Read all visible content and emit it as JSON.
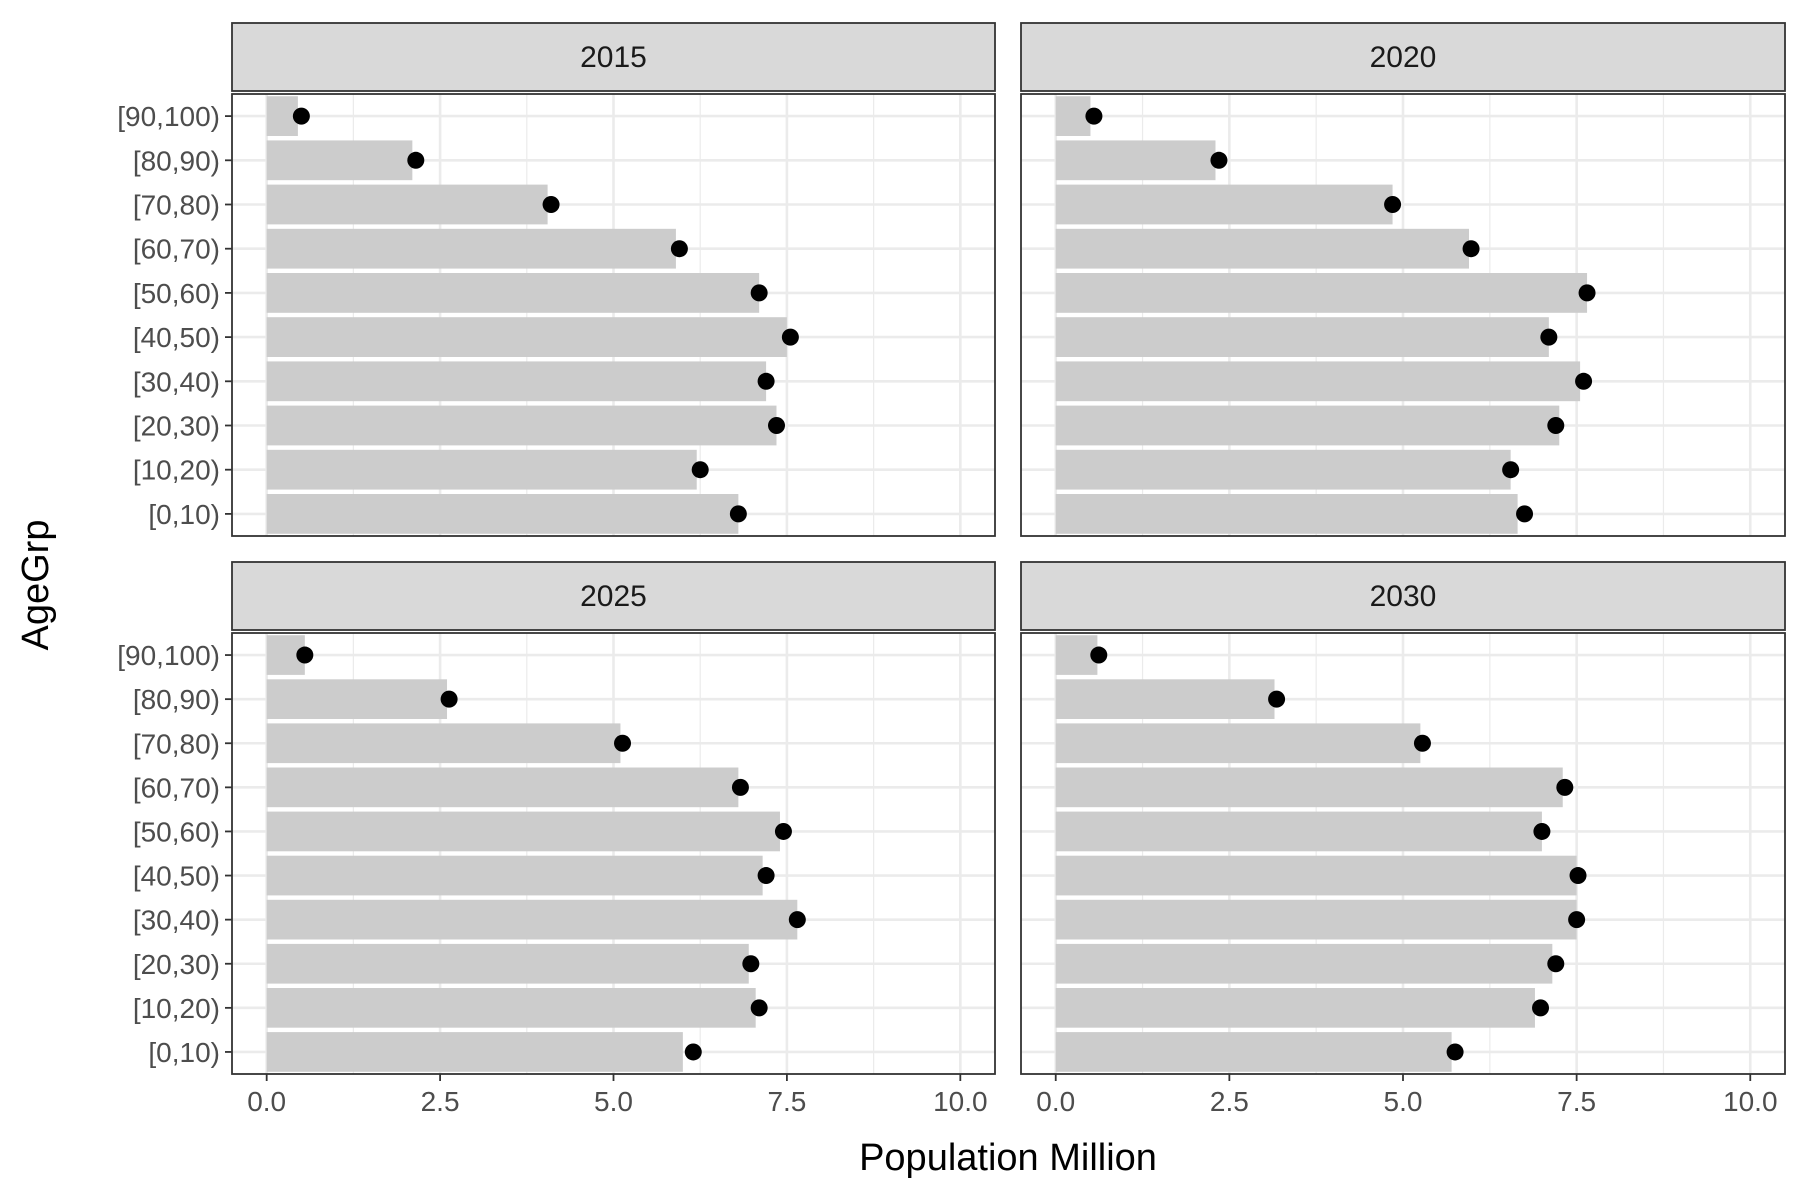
{
  "chart_data": {
    "type": "bar",
    "xlabel": "Population Million",
    "ylabel": "AgeGrp",
    "xlim": [
      -0.5,
      10.5
    ],
    "x_ticks": [
      "0.0",
      "2.5",
      "5.0",
      "7.5",
      "10.0"
    ],
    "x_tick_values": [
      0,
      2.5,
      5,
      7.5,
      10
    ],
    "categories": [
      "[0,10)",
      "[10,20)",
      "[20,30)",
      "[30,40)",
      "[40,50)",
      "[50,60)",
      "[60,70)",
      "[70,80)",
      "[80,90)",
      "[90,100)"
    ],
    "grid": true,
    "colors": {
      "bar": "#cccccc",
      "point": "#000000",
      "strip": "#d9d9d9",
      "grid": "#ebebeb"
    },
    "panels": [
      {
        "title": "2015",
        "bars": [
          6.8,
          6.2,
          7.35,
          7.2,
          7.5,
          7.1,
          5.9,
          4.05,
          2.1,
          0.45
        ],
        "points": [
          6.8,
          6.25,
          7.35,
          7.2,
          7.55,
          7.1,
          5.95,
          4.1,
          2.15,
          0.5
        ]
      },
      {
        "title": "2020",
        "bars": [
          6.65,
          6.55,
          7.25,
          7.55,
          7.1,
          7.65,
          5.95,
          4.85,
          2.3,
          0.5
        ],
        "points": [
          6.75,
          6.55,
          7.2,
          7.6,
          7.1,
          7.65,
          5.98,
          4.85,
          2.35,
          0.55
        ]
      },
      {
        "title": "2025",
        "bars": [
          6.0,
          7.05,
          6.95,
          7.65,
          7.15,
          7.4,
          6.8,
          5.1,
          2.6,
          0.55
        ],
        "points": [
          6.15,
          7.1,
          6.98,
          7.65,
          7.2,
          7.45,
          6.83,
          5.13,
          2.63,
          0.55
        ]
      },
      {
        "title": "2030",
        "bars": [
          5.7,
          6.9,
          7.15,
          7.5,
          7.5,
          7.0,
          7.3,
          5.25,
          3.15,
          0.6
        ],
        "points": [
          5.75,
          6.98,
          7.2,
          7.5,
          7.52,
          7.0,
          7.33,
          5.28,
          3.18,
          0.62
        ]
      }
    ]
  }
}
